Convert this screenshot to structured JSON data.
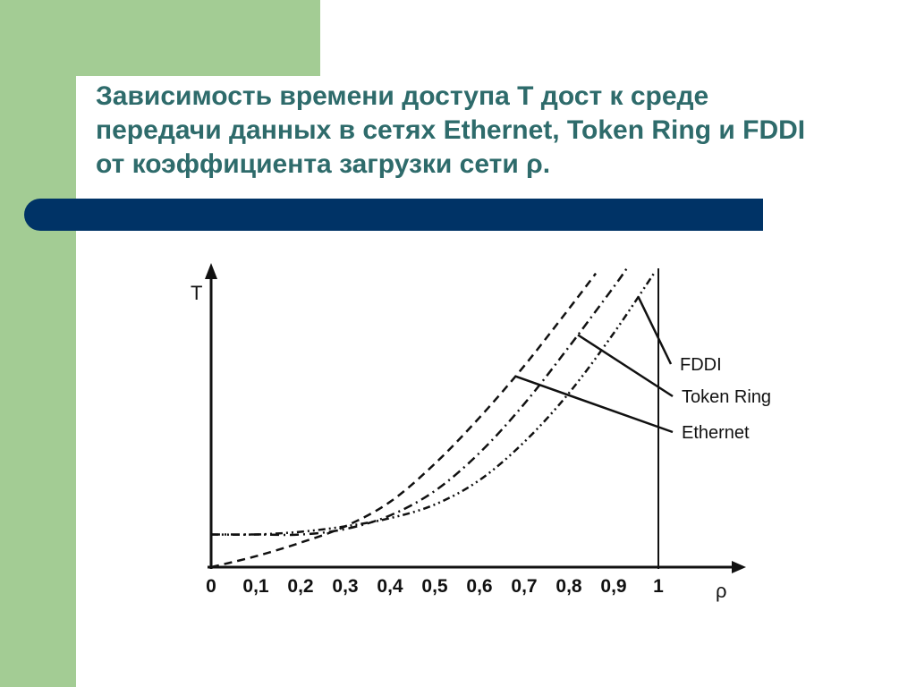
{
  "slide": {
    "title": "Зависимость времени доступа T дост к среде передачи данных в сетях Ethernet, Token Ring и FDDI от коэффициента загрузки  сети ρ.",
    "colors": {
      "accent_green": "#a3cc94",
      "title_bar": "#003366",
      "title_text": "#2e6b6b"
    }
  },
  "chart_data": {
    "type": "line",
    "xlabel": "ρ",
    "ylabel": "T",
    "xlim": [
      0,
      1
    ],
    "x_ticks": [
      "0",
      "0,1",
      "0,2",
      "0,3",
      "0,4",
      "0,5",
      "0,6",
      "0,7",
      "0,8",
      "0,9",
      "1"
    ],
    "y_ticks": [],
    "grid": false,
    "series": [
      {
        "name": "Ethernet",
        "style": "dashed",
        "x": [
          0,
          0.1,
          0.2,
          0.3,
          0.4,
          0.5,
          0.6,
          0.7,
          0.8,
          0.86
        ],
        "y": [
          0.0,
          0.04,
          0.09,
          0.15,
          0.24,
          0.38,
          0.55,
          0.74,
          0.95,
          1.08
        ]
      },
      {
        "name": "Token Ring",
        "style": "dash-dot",
        "x": [
          0,
          0.1,
          0.2,
          0.3,
          0.4,
          0.5,
          0.6,
          0.7,
          0.8,
          0.9,
          0.93
        ],
        "y": [
          0.12,
          0.12,
          0.12,
          0.14,
          0.19,
          0.28,
          0.42,
          0.6,
          0.81,
          1.03,
          1.1
        ]
      },
      {
        "name": "FDDI",
        "style": "dash-dot-dot",
        "x": [
          0,
          0.1,
          0.2,
          0.3,
          0.4,
          0.5,
          0.6,
          0.7,
          0.8,
          0.9,
          0.99
        ],
        "y": [
          0.12,
          0.12,
          0.13,
          0.15,
          0.18,
          0.23,
          0.32,
          0.46,
          0.64,
          0.86,
          1.08
        ]
      }
    ]
  }
}
